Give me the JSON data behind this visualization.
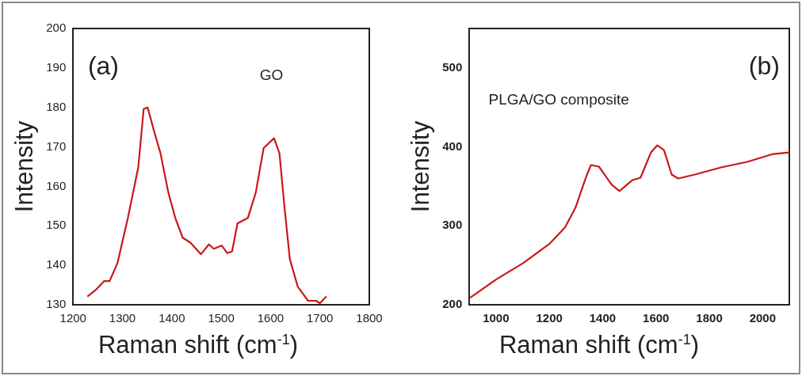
{
  "chart_data": [
    {
      "type": "line",
      "xlabel": "Raman shift (cm$^{-1}$)",
      "ylabel": "Intensity",
      "annotations": [
        "(a)",
        "GO"
      ],
      "xlim": [
        1200,
        1800
      ],
      "xticks": [
        1200,
        1300,
        1400,
        1500,
        1600,
        1700,
        1800
      ],
      "ylim": [
        130,
        200
      ],
      "yticks": [
        130,
        140,
        150,
        160,
        170,
        180,
        190,
        200
      ],
      "grid": false,
      "legend": false,
      "marker": "none",
      "line_style": "solid",
      "series": [
        {
          "color": "#c81818",
          "x": [
            1229,
            1247,
            1263,
            1274,
            1290,
            1311,
            1332,
            1343,
            1351,
            1364,
            1377,
            1393,
            1407,
            1422,
            1438,
            1459,
            1475,
            1485,
            1501,
            1512,
            1522,
            1533,
            1554,
            1570,
            1586,
            1607,
            1618,
            1628,
            1639,
            1655,
            1676,
            1692,
            1700,
            1713
          ],
          "values": [
            132.1,
            133.9,
            136,
            136,
            140.6,
            152,
            164.8,
            179.6,
            180,
            174,
            168.4,
            158.4,
            152,
            147,
            145.7,
            142.8,
            145.3,
            144.2,
            145,
            143.1,
            143.5,
            150.6,
            152,
            158.4,
            169.7,
            172.2,
            168.4,
            155,
            141.6,
            134.6,
            131,
            131,
            130.4,
            132.1
          ]
        }
      ]
    },
    {
      "type": "line",
      "xlabel": "Raman shift (cm$^{-1}$)",
      "ylabel": "Intensity",
      "annotations": [
        "(b)",
        "PLGA/GO composite"
      ],
      "xlim": [
        900,
        2100
      ],
      "xticks": [
        1000,
        1200,
        1400,
        1600,
        1800,
        2000
      ],
      "ylim": [
        200,
        550
      ],
      "yticks": [
        200,
        300,
        400,
        500
      ],
      "grid": false,
      "legend": false,
      "marker": "none",
      "line_style": "solid",
      "series": [
        {
          "color": "#c81818",
          "x": [
            903,
            1000,
            1103,
            1200,
            1259,
            1298,
            1337,
            1356,
            1386,
            1434,
            1463,
            1512,
            1542,
            1581,
            1605,
            1630,
            1659,
            1683,
            1746,
            1844,
            1942,
            2039,
            2100
          ],
          "values": [
            209,
            232,
            253,
            277,
            298,
            323,
            361,
            377,
            375,
            352,
            344,
            358,
            361,
            393,
            402,
            396,
            365,
            360,
            365,
            374,
            381,
            391,
            393
          ]
        }
      ]
    }
  ]
}
